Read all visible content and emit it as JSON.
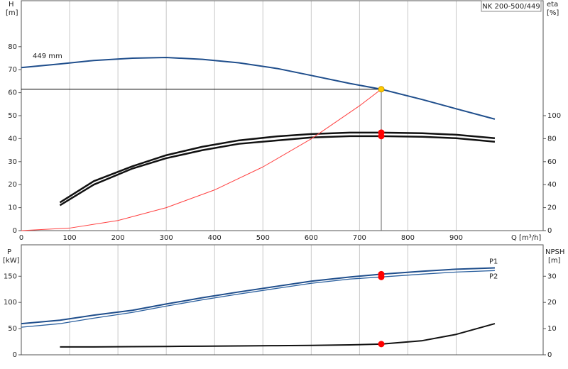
{
  "chart_data": [
    {
      "type": "line",
      "title": "NK 200-500/449",
      "xlabel": "Q [m³/h]",
      "ylabel": "H",
      "yunit": "[m]",
      "y2label": "eta",
      "y2unit": "[%]",
      "xlim": [
        0,
        1080
      ],
      "xticks": [
        0,
        100,
        200,
        300,
        400,
        500,
        600,
        700,
        800,
        900
      ],
      "ylim": [
        0,
        100
      ],
      "yticks": [
        0,
        10,
        20,
        30,
        40,
        50,
        60,
        70,
        80
      ],
      "y2lim": [
        0,
        200
      ],
      "y2ticks": [
        0,
        20,
        40,
        60,
        80,
        100
      ],
      "grid": true,
      "annotations": [
        {
          "text": "449 mm"
        }
      ],
      "operating_point": {
        "q": 745,
        "h": 61.5,
        "color": "#ffcc00"
      },
      "series": [
        {
          "color": "#1f4e8c",
          "width": 2,
          "marker_color": "#ffcc00",
          "x": [
            0,
            80,
            150,
            230,
            300,
            375,
            450,
            530,
            600,
            680,
            745,
            830,
            900,
            980
          ],
          "values": [
            70.9,
            72.5,
            74,
            75,
            75.3,
            74.5,
            73,
            70.5,
            67.5,
            64,
            61.5,
            57,
            53,
            48.5
          ]
        },
        {
          "color": "#111111",
          "width": 2.5,
          "axis": "y2",
          "marker_color": "#ff0000",
          "x": [
            80,
            150,
            230,
            300,
            375,
            450,
            530,
            600,
            680,
            745,
            830,
            900,
            980
          ],
          "values": [
            24.5,
            43,
            56,
            65.6,
            73,
            78.5,
            82,
            84,
            85.3,
            85.3,
            84.7,
            83.4,
            80.4
          ]
        },
        {
          "color": "#111111",
          "width": 2.5,
          "axis": "y2",
          "marker_color": "#ff0000",
          "x": [
            80,
            150,
            230,
            300,
            375,
            450,
            530,
            600,
            680,
            745,
            830,
            900,
            980
          ],
          "values": [
            22,
            40,
            54,
            63,
            70,
            75.5,
            78.5,
            81,
            82.2,
            82.2,
            81.6,
            80.4,
            77.3
          ]
        },
        {
          "color": "#ff4040",
          "width": 1,
          "x": [
            0,
            100,
            200,
            300,
            400,
            500,
            600,
            700,
            745
          ],
          "values": [
            0,
            1.1,
            4.4,
            10,
            17.7,
            27.7,
            39.9,
            54.3,
            61.5
          ]
        }
      ]
    },
    {
      "type": "line",
      "ylabel": "P",
      "yunit": "[kW]",
      "y2label": "NPSH",
      "y2unit": "[m]",
      "ylim": [
        0,
        210
      ],
      "yticks": [
        0,
        50,
        100,
        150
      ],
      "y2lim": [
        0,
        42
      ],
      "y2ticks": [
        0,
        10,
        20,
        30
      ],
      "grid": true,
      "series": [
        {
          "name": "P1",
          "color": "#1f4e8c",
          "width": 2,
          "marker_color": "#ff0000",
          "x": [
            0,
            80,
            150,
            230,
            300,
            375,
            450,
            530,
            600,
            680,
            745,
            830,
            900,
            980
          ],
          "values": [
            59.5,
            66,
            75.7,
            85,
            97,
            109,
            120,
            131,
            140.5,
            148.6,
            154,
            159.5,
            163.5,
            166
          ]
        },
        {
          "name": "P2",
          "color": "#2a5f9e",
          "width": 1.3,
          "marker_color": "#ff0000",
          "x": [
            0,
            80,
            150,
            230,
            300,
            375,
            450,
            530,
            600,
            680,
            745,
            830,
            900,
            980
          ],
          "values": [
            52.7,
            59.5,
            70,
            81,
            93,
            105,
            116,
            127,
            136.5,
            144.6,
            148.6,
            154,
            158,
            160.8
          ]
        },
        {
          "color": "#111111",
          "width": 2,
          "axis": "y2",
          "marker_color": "#ff0000",
          "x": [
            80,
            150,
            230,
            300,
            375,
            450,
            530,
            600,
            680,
            745,
            830,
            900,
            980
          ],
          "values": [
            3.0,
            3.0,
            3.1,
            3.2,
            3.3,
            3.4,
            3.5,
            3.6,
            3.8,
            4.1,
            5.4,
            7.8,
            11.9
          ]
        }
      ]
    }
  ]
}
